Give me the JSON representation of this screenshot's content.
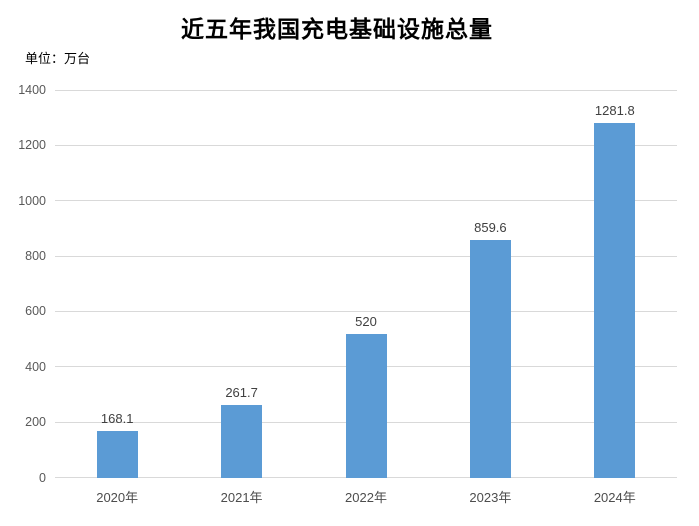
{
  "chart": {
    "title": "近五年我国充电基础设施总量",
    "unit_label": "单位：万台"
  },
  "chart_data": {
    "type": "bar",
    "title": "近五年我国充电基础设施总量",
    "unit": "单位：万台",
    "categories": [
      "2020年",
      "2021年",
      "2022年",
      "2023年",
      "2024年"
    ],
    "values": [
      168.1,
      261.7,
      520,
      859.6,
      1281.8
    ],
    "value_labels": [
      "168.1",
      "261.7",
      "520",
      "859.6",
      "1281.8"
    ],
    "xlabel": "",
    "ylabel": "单位：万台",
    "ylim": [
      0,
      1400
    ],
    "yticks": [
      0,
      200,
      400,
      600,
      800,
      1000,
      1200,
      1400
    ],
    "grid": true,
    "legend": false,
    "colors": {
      "bar": "#5B9BD5",
      "gridline": "#D9D9D9",
      "axis_line": "#D9D9D9",
      "y_tick_label": "#595959",
      "x_tick_label": "#4d4d4d",
      "data_label": "#404040",
      "title": "#000000",
      "background": "#FFFFFF"
    }
  }
}
